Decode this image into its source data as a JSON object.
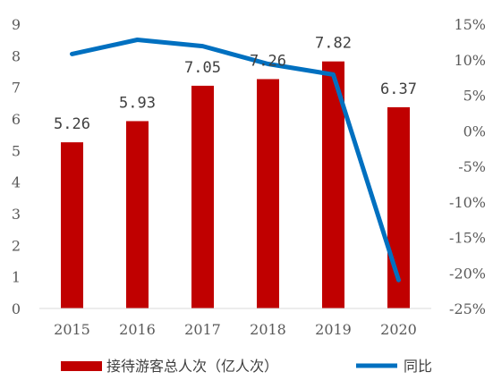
{
  "chart_data": {
    "type": "bar+line",
    "title": "",
    "categories": [
      "2015",
      "2016",
      "2017",
      "2018",
      "2019",
      "2020"
    ],
    "series": [
      {
        "name": "接待游客总人次（亿人次）",
        "type": "bar",
        "axis": "left",
        "values": [
          5.26,
          5.93,
          7.05,
          7.26,
          7.82,
          6.37
        ],
        "data_labels": [
          "5.26",
          "5.93",
          "7.05",
          "7.26",
          "7.82",
          "6.37"
        ],
        "color": "#C00000"
      },
      {
        "name": "同比",
        "type": "line",
        "axis": "right",
        "values": [
          10.8,
          12.8,
          11.9,
          9.4,
          7.9,
          -21.0
        ],
        "color": "#0070C0"
      }
    ],
    "y_left": {
      "min": 0,
      "max": 9,
      "ticks": [
        "0",
        "1",
        "2",
        "3",
        "4",
        "5",
        "6",
        "7",
        "8",
        "9"
      ]
    },
    "y_right": {
      "min": -25,
      "max": 15,
      "ticks": [
        "-25%",
        "-20%",
        "-15%",
        "-10%",
        "-5%",
        "0%",
        "5%",
        "10%",
        "15%"
      ]
    },
    "grid": false,
    "legend_position": "bottom"
  }
}
